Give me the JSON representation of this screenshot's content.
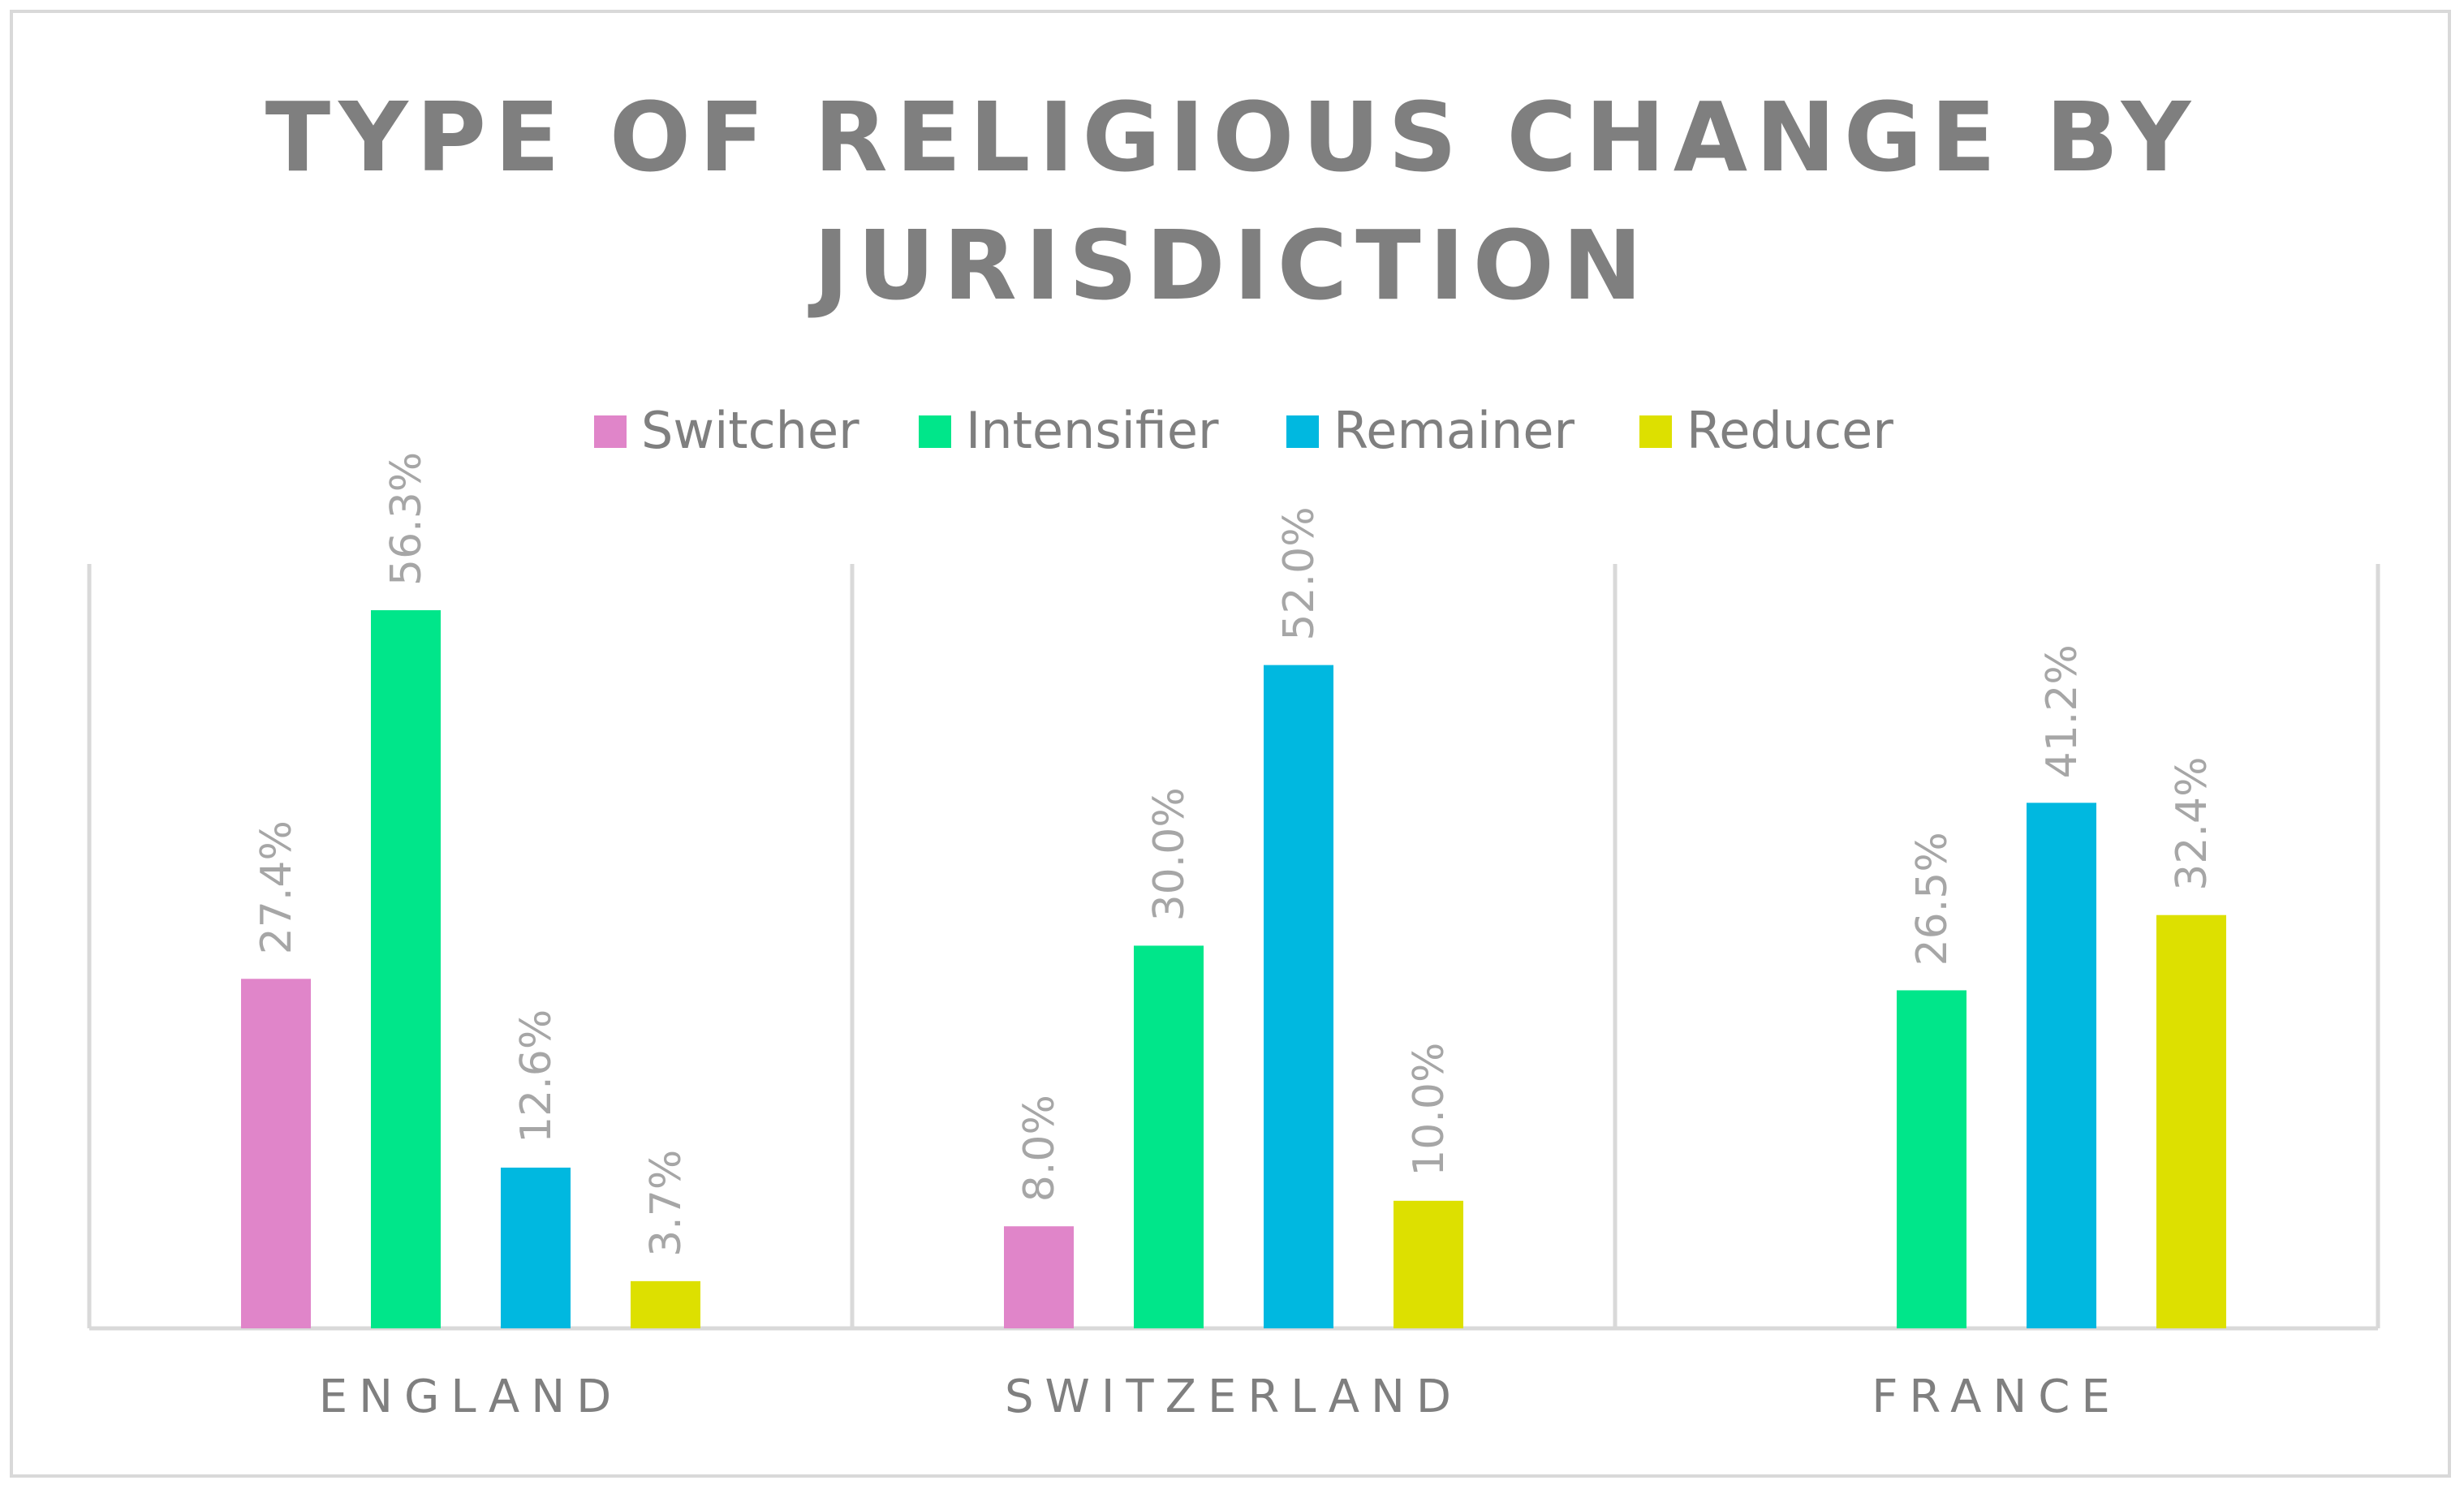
{
  "chart_data": {
    "type": "bar",
    "title": "TYPE OF RELIGIOUS CHANGE BY JURISDICTION",
    "title_lines": [
      "TYPE OF RELIGIOUS CHANGE BY",
      "JURISDICTION"
    ],
    "xlabel": "",
    "ylabel": "",
    "ylim": [
      0,
      60
    ],
    "grid": false,
    "legend_position": "top",
    "categories": [
      "ENGLAND",
      "SWITZERLAND",
      "FRANCE"
    ],
    "series": [
      {
        "name": "Switcher",
        "color": "#e085c9",
        "values": [
          27.4,
          8.0,
          null
        ],
        "labels": [
          "27.4%",
          "8.0%",
          ""
        ]
      },
      {
        "name": "Intensifier",
        "color": "#00e68a",
        "values": [
          56.3,
          30.0,
          26.5
        ],
        "labels": [
          "56.3%",
          "30.0%",
          "26.5%"
        ]
      },
      {
        "name": "Remainer",
        "color": "#00b8e0",
        "values": [
          12.6,
          52.0,
          41.2
        ],
        "labels": [
          "12.6%",
          "52.0%",
          "41.2%"
        ]
      },
      {
        "name": "Reducer",
        "color": "#dde000",
        "values": [
          3.7,
          10.0,
          32.4
        ],
        "labels": [
          "3.7%",
          "10.0%",
          "32.4%"
        ]
      }
    ]
  }
}
